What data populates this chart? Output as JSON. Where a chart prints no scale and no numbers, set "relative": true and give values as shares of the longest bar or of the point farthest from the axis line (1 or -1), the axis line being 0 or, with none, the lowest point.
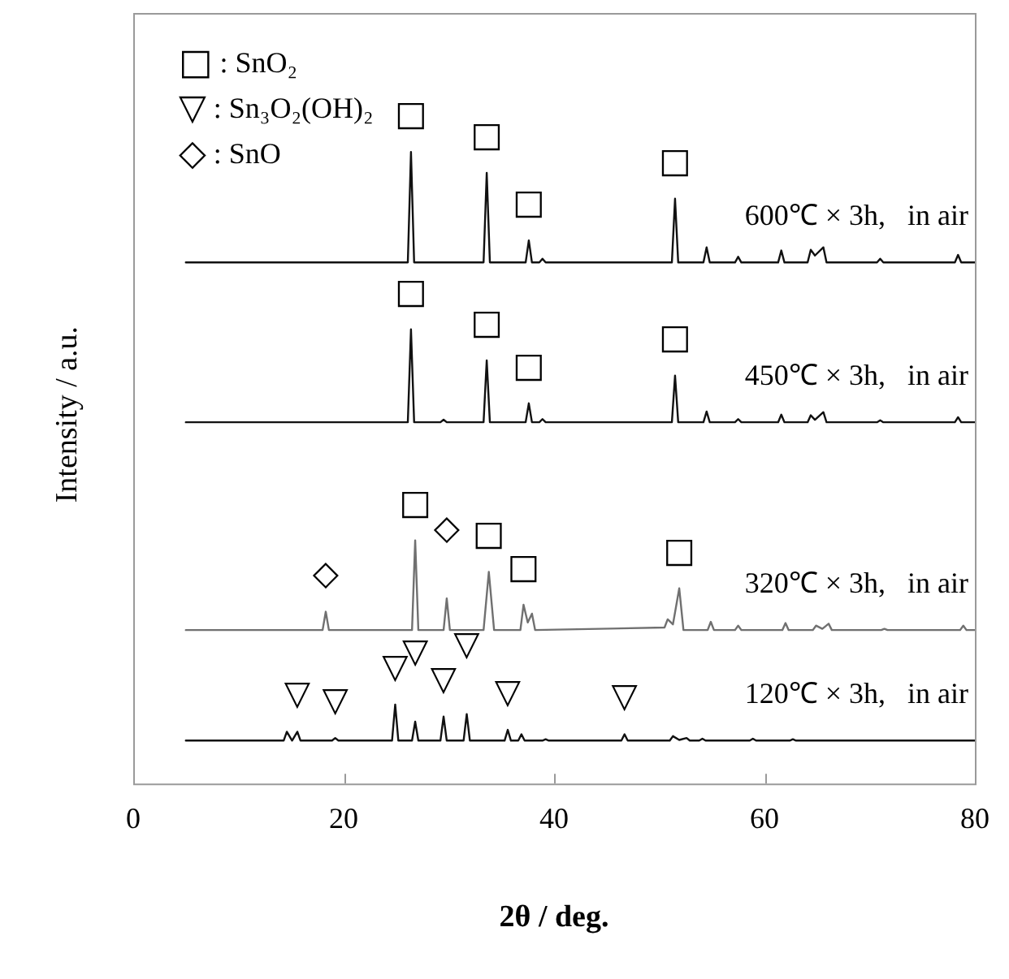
{
  "chart_data": {
    "type": "line",
    "relative": true,
    "xlabel": "2θ / deg.",
    "ylabel": "Intensity / a.u.",
    "xlim": [
      0,
      80
    ],
    "xticks": [
      0,
      20,
      40,
      60,
      80
    ],
    "tick_labels": "x",
    "grid": false,
    "legend": false,
    "marker": "none",
    "line_style": "solid",
    "series": [
      {
        "name": "600℃ × 3h,   in air",
        "color": "#111111",
        "x": [
          5,
          26.1,
          26.4,
          26.7,
          33.3,
          33.6,
          33.9,
          37.3,
          37.6,
          37.9,
          38.6,
          38.9,
          39.2,
          51.2,
          51.5,
          51.8,
          54.2,
          54.5,
          54.8,
          57.2,
          57.5,
          57.8,
          61.3,
          61.6,
          61.9,
          64.1,
          64.4,
          64.8,
          65.6,
          65.9,
          70.7,
          71.0,
          71.3,
          78.1,
          78.4,
          78.7,
          80
        ],
        "values": [
          0.825,
          0.825,
          1,
          0.825,
          0.825,
          0.967,
          0.825,
          0.825,
          0.86,
          0.825,
          0.825,
          0.831,
          0.825,
          0.825,
          0.926,
          0.825,
          0.825,
          0.849,
          0.825,
          0.825,
          0.834,
          0.825,
          0.825,
          0.844,
          0.825,
          0.825,
          0.845,
          0.836,
          0.849,
          0.825,
          0.825,
          0.831,
          0.825,
          0.825,
          0.837,
          0.825,
          0.825
        ]
      },
      {
        "name": "450℃ × 3h,   in air",
        "color": "#111111",
        "x": [
          5,
          26.1,
          26.4,
          26.7,
          29.2,
          29.5,
          29.8,
          33.3,
          33.6,
          33.9,
          37.3,
          37.6,
          37.9,
          38.6,
          38.9,
          39.2,
          51.2,
          51.5,
          51.8,
          54.2,
          54.5,
          54.8,
          57.2,
          57.5,
          57.8,
          61.3,
          61.6,
          61.9,
          64.1,
          64.4,
          64.8,
          65.6,
          65.9,
          70.7,
          71.0,
          71.3,
          78.1,
          78.4,
          78.7,
          80
        ],
        "values": [
          0.572,
          0.572,
          0.719,
          0.572,
          0.572,
          0.576,
          0.572,
          0.572,
          0.67,
          0.572,
          0.572,
          0.602,
          0.572,
          0.572,
          0.577,
          0.572,
          0.572,
          0.646,
          0.572,
          0.572,
          0.589,
          0.572,
          0.572,
          0.577,
          0.572,
          0.572,
          0.584,
          0.572,
          0.572,
          0.583,
          0.576,
          0.588,
          0.572,
          0.572,
          0.575,
          0.572,
          0.572,
          0.58,
          0.572,
          0.572
        ]
      },
      {
        "name": "320℃ × 3h,   in air",
        "color": "#707070",
        "x": [
          5,
          18.0,
          18.3,
          18.6,
          26.5,
          26.8,
          27.1,
          29.5,
          29.8,
          30.1,
          33.3,
          33.8,
          34.3,
          36.8,
          37.1,
          37.5,
          37.9,
          38.2,
          50.5,
          50.8,
          51.3,
          51.9,
          52.3,
          54.6,
          54.9,
          55.2,
          57.2,
          57.5,
          57.8,
          61.7,
          62.0,
          62.3,
          64.6,
          64.9,
          65.5,
          66.1,
          66.4,
          71.1,
          71.4,
          71.7,
          78.6,
          78.9,
          79.2,
          80
        ],
        "values": [
          0.243,
          0.243,
          0.272,
          0.243,
          0.243,
          0.385,
          0.243,
          0.243,
          0.293,
          0.243,
          0.243,
          0.335,
          0.243,
          0.243,
          0.283,
          0.255,
          0.269,
          0.243,
          0.247,
          0.26,
          0.252,
          0.309,
          0.243,
          0.243,
          0.256,
          0.243,
          0.243,
          0.25,
          0.243,
          0.243,
          0.254,
          0.243,
          0.243,
          0.25,
          0.245,
          0.253,
          0.243,
          0.243,
          0.245,
          0.243,
          0.243,
          0.25,
          0.243,
          0.243
        ]
      },
      {
        "name": "120℃ × 3h,   in air",
        "color": "#111111",
        "x": [
          5,
          14.3,
          14.6,
          15.1,
          15.6,
          15.9,
          18.9,
          19.2,
          19.5,
          24.6,
          24.9,
          25.2,
          26.5,
          26.8,
          27.1,
          29.2,
          29.5,
          29.8,
          31.4,
          31.7,
          32.0,
          35.3,
          35.6,
          35.9,
          36.6,
          36.9,
          37.2,
          38.9,
          39.2,
          39.5,
          46.4,
          46.7,
          47.0,
          51.0,
          51.3,
          51.9,
          52.6,
          52.9,
          53.8,
          54.1,
          54.4,
          58.6,
          58.9,
          59.2,
          62.4,
          62.7,
          63.0,
          80
        ],
        "values": [
          0.068,
          0.068,
          0.082,
          0.068,
          0.082,
          0.068,
          0.068,
          0.072,
          0.068,
          0.068,
          0.125,
          0.068,
          0.068,
          0.098,
          0.068,
          0.068,
          0.106,
          0.068,
          0.068,
          0.11,
          0.068,
          0.068,
          0.085,
          0.068,
          0.068,
          0.078,
          0.068,
          0.068,
          0.07,
          0.068,
          0.068,
          0.078,
          0.068,
          0.068,
          0.075,
          0.069,
          0.072,
          0.068,
          0.068,
          0.071,
          0.068,
          0.068,
          0.071,
          0.068,
          0.068,
          0.07,
          0.068,
          0.068
        ]
      }
    ],
    "annotations": [
      "□ : SnO₂",
      "▽ : Sn₃O₂(OH)₂",
      "◇ : SnO",
      {
        "text": "□",
        "x": 26.4,
        "y": 1
      },
      {
        "text": "□",
        "x": 33.6,
        "y": 0.967
      },
      {
        "text": "□",
        "x": 37.6,
        "y": 0.86
      },
      {
        "text": "□",
        "x": 51.5,
        "y": 0.926
      },
      {
        "text": "□",
        "x": 26.4,
        "y": 0.719
      },
      {
        "text": "□",
        "x": 33.6,
        "y": 0.67
      },
      {
        "text": "□",
        "x": 37.6,
        "y": 0.602
      },
      {
        "text": "□",
        "x": 51.5,
        "y": 0.646
      },
      {
        "text": "◇",
        "x": 18.3,
        "y": 0.272
      },
      {
        "text": "□",
        "x": 26.8,
        "y": 0.385
      },
      {
        "text": "◇",
        "x": 29.8,
        "y": 0.293
      },
      {
        "text": "□",
        "x": 33.8,
        "y": 0.335
      },
      {
        "text": "□",
        "x": 37.1,
        "y": 0.283
      },
      {
        "text": "□",
        "x": 51.9,
        "y": 0.309
      },
      {
        "text": "▽",
        "x": 15.6,
        "y": 0.082
      },
      {
        "text": "▽",
        "x": 19.2,
        "y": 0.072
      },
      {
        "text": "▽",
        "x": 24.9,
        "y": 0.125
      },
      {
        "text": "▽",
        "x": 26.8,
        "y": 0.098
      },
      {
        "text": "▽",
        "x": 29.5,
        "y": 0.106
      },
      {
        "text": "▽",
        "x": 31.7,
        "y": 0.11
      },
      {
        "text": "▽",
        "x": 35.6,
        "y": 0.085
      },
      {
        "text": "▽",
        "x": 46.7,
        "y": 0.078
      }
    ]
  }
}
